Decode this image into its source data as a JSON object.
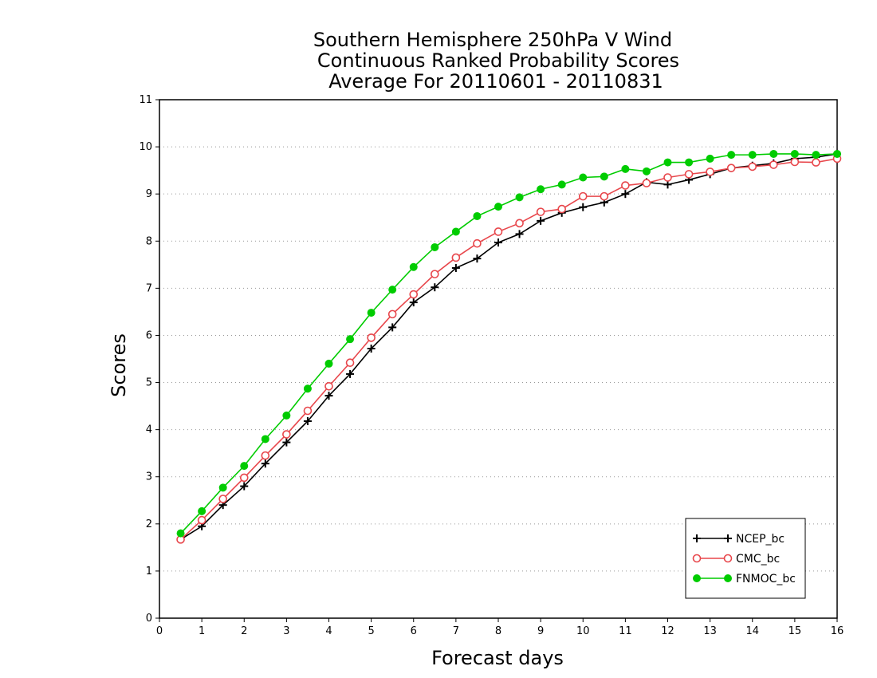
{
  "chart_data": {
    "type": "line",
    "title": [
      "Southern Hemisphere 250hPa V Wind",
      "Continuous Ranked Probability Scores",
      "Average For 20110601 - 20110831"
    ],
    "xlabel": "Forecast days",
    "ylabel": "Scores",
    "xlim": [
      0,
      16
    ],
    "ylim": [
      0,
      11
    ],
    "xticks": [
      "0",
      "1",
      "2",
      "3",
      "4",
      "5",
      "6",
      "7",
      "8",
      "9",
      "10",
      "11",
      "12",
      "13",
      "14",
      "15",
      "16"
    ],
    "yticks": [
      "0",
      "1",
      "2",
      "3",
      "4",
      "5",
      "6",
      "7",
      "8",
      "9",
      "10",
      "11"
    ],
    "grid": "horizontal dotted",
    "legend_position": "bottom-right",
    "x": [
      0.5,
      1,
      1.5,
      2,
      2.5,
      3,
      3.5,
      4,
      4.5,
      5,
      5.5,
      6,
      6.5,
      7,
      7.5,
      8,
      8.5,
      9,
      9.5,
      10,
      10.5,
      11,
      11.5,
      12,
      12.5,
      13,
      13.5,
      14,
      14.5,
      15,
      15.5,
      16
    ],
    "series": [
      {
        "name": "NCEP_bc",
        "color": "#000000",
        "marker": "plus",
        "values": [
          1.67,
          1.95,
          2.4,
          2.8,
          3.28,
          3.73,
          4.18,
          4.72,
          5.18,
          5.72,
          6.17,
          6.7,
          7.02,
          7.43,
          7.63,
          7.97,
          8.15,
          8.43,
          8.6,
          8.72,
          8.82,
          9.0,
          9.25,
          9.2,
          9.3,
          9.42,
          9.55,
          9.6,
          9.65,
          9.75,
          9.78,
          9.85
        ]
      },
      {
        "name": "CMC_bc",
        "color": "#e8474c",
        "marker": "open-circle",
        "values": [
          1.67,
          2.08,
          2.53,
          2.98,
          3.45,
          3.9,
          4.4,
          4.92,
          5.42,
          5.95,
          6.45,
          6.87,
          7.3,
          7.65,
          7.95,
          8.2,
          8.38,
          8.62,
          8.68,
          8.95,
          8.95,
          9.18,
          9.23,
          9.35,
          9.42,
          9.47,
          9.55,
          9.58,
          9.62,
          9.68,
          9.67,
          9.75
        ]
      },
      {
        "name": "FNMOC_bc",
        "color": "#00cc00",
        "marker": "filled-circle",
        "values": [
          1.8,
          2.27,
          2.77,
          3.23,
          3.8,
          4.3,
          4.87,
          5.4,
          5.92,
          6.48,
          6.97,
          7.45,
          7.87,
          8.2,
          8.53,
          8.73,
          8.93,
          9.1,
          9.2,
          9.35,
          9.37,
          9.53,
          9.48,
          9.67,
          9.67,
          9.75,
          9.83,
          9.83,
          9.85,
          9.85,
          9.83,
          9.85
        ]
      }
    ]
  }
}
